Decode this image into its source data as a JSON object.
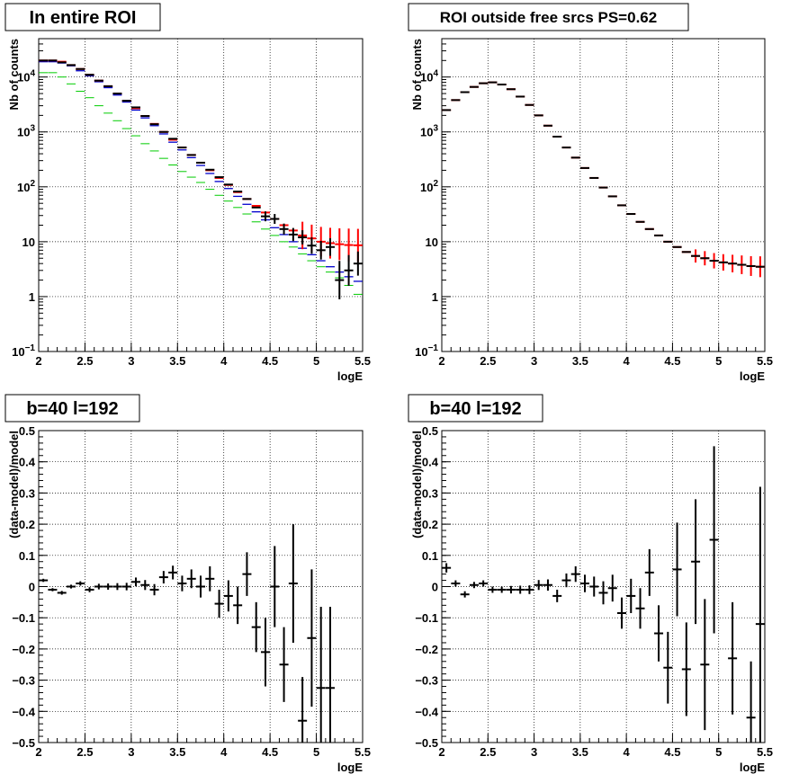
{
  "chart_data": [
    {
      "type": "scatter",
      "title": "In entire ROI",
      "xlabel": "logE",
      "ylabel": "Nb of counts",
      "log_y": true,
      "xlim": [
        2,
        5.5
      ],
      "ylim": [
        0.1,
        50000
      ],
      "x_ticks": [
        "2",
        "2.5",
        "3",
        "3.5",
        "4",
        "4.5",
        "5",
        "5.5"
      ],
      "y_ticks": [
        {
          "v": 0.1,
          "m": "10",
          "e": "−1"
        },
        {
          "v": 1,
          "m": "1",
          "e": ""
        },
        {
          "v": 10,
          "m": "10",
          "e": ""
        },
        {
          "v": 100,
          "m": "10",
          "e": "2"
        },
        {
          "v": 1000,
          "m": "10",
          "e": "3"
        },
        {
          "v": 10000,
          "m": "10",
          "e": "4"
        }
      ],
      "grid": true,
      "series": [
        {
          "color": "#00cc00",
          "lw": 1,
          "x": [
            2.05,
            2.15,
            2.25,
            2.35,
            2.45,
            2.55,
            2.65,
            2.75,
            2.85,
            2.95,
            3.05,
            3.15,
            3.25,
            3.35,
            3.45,
            3.55,
            3.65,
            3.75,
            3.85,
            3.95,
            4.05,
            4.15,
            4.25,
            4.35,
            4.45,
            4.55,
            4.65,
            4.75,
            4.85,
            4.95,
            5.05,
            5.15,
            5.25,
            5.35,
            5.45
          ],
          "y": [
            12000,
            12000,
            10000,
            7500,
            5500,
            4200,
            3000,
            2200,
            1600,
            1150,
            850,
            610,
            450,
            330,
            250,
            190,
            150,
            120,
            90,
            70,
            55,
            42,
            32,
            23,
            17,
            13,
            10,
            8,
            6,
            4.5,
            3.5,
            2.8,
            2.2,
            1.6,
            1.1
          ]
        },
        {
          "color": "#0000cc",
          "lw": 1.3,
          "x": [
            2.05,
            2.15,
            2.25,
            2.35,
            2.45,
            2.55,
            2.65,
            2.75,
            2.85,
            2.95,
            3.05,
            3.15,
            3.25,
            3.35,
            3.45,
            3.55,
            3.65,
            3.75,
            3.85,
            3.95,
            4.05,
            4.15,
            4.25,
            4.35,
            4.45,
            4.55,
            4.65,
            4.75,
            4.85,
            4.95,
            5.05,
            5.15,
            5.25,
            5.35,
            5.45
          ],
          "y": [
            19000,
            19000,
            18000,
            16000,
            13000,
            10500,
            8200,
            6400,
            4700,
            3500,
            2500,
            1800,
            1300,
            920,
            650,
            470,
            340,
            245,
            175,
            125,
            93,
            67,
            48,
            35,
            25,
            18,
            13.5,
            10,
            7.6,
            5.8,
            4.5,
            3.5,
            2.8,
            2.3,
            1.9
          ]
        },
        {
          "color": "#ff0000",
          "lw": 2,
          "x": [
            2.05,
            2.15,
            2.25,
            2.35,
            2.45,
            2.55,
            2.65,
            2.75,
            2.85,
            2.95,
            3.05,
            3.15,
            3.25,
            3.35,
            3.45,
            3.55,
            3.65,
            3.75,
            3.85,
            3.95,
            4.05,
            4.15,
            4.25,
            4.35,
            4.45,
            4.55,
            4.65,
            4.75,
            4.85,
            4.95,
            5.05,
            5.15,
            5.25,
            5.35,
            5.45
          ],
          "y": [
            20000,
            20000,
            19000,
            16500,
            14000,
            11000,
            8600,
            6800,
            5000,
            3700,
            2700,
            1950,
            1400,
            1000,
            720,
            520,
            380,
            275,
            200,
            145,
            108,
            80,
            60,
            45,
            34,
            26,
            20,
            16,
            13,
            11.5,
            10,
            9.4,
            9,
            8.7,
            8.6
          ],
          "err": [
            0,
            0,
            0,
            0,
            0,
            0,
            0,
            0,
            0,
            0,
            0,
            0,
            0,
            0,
            0,
            0,
            0,
            0,
            0,
            0,
            0,
            0,
            0,
            0,
            0,
            0,
            0,
            0,
            0.25,
            0.25,
            0.27,
            0.28,
            0.29,
            0.3,
            0.3
          ]
        },
        {
          "color": "#000000",
          "lw": 2,
          "x": [
            2.05,
            2.15,
            2.25,
            2.35,
            2.45,
            2.55,
            2.65,
            2.75,
            2.85,
            2.95,
            3.05,
            3.15,
            3.25,
            3.35,
            3.45,
            3.55,
            3.65,
            3.75,
            3.85,
            3.95,
            4.05,
            4.15,
            4.25,
            4.35,
            4.45,
            4.55,
            4.65,
            4.75,
            4.85,
            4.95,
            5.05,
            5.15,
            5.25,
            5.35,
            5.45
          ],
          "y": [
            20000,
            20000,
            18500,
            16500,
            14000,
            11000,
            8600,
            6800,
            5000,
            3700,
            2800,
            1950,
            1380,
            1000,
            750,
            520,
            380,
            275,
            205,
            150,
            110,
            82,
            60,
            42,
            29,
            26,
            17,
            13.5,
            12,
            8.5,
            7,
            8,
            2,
            3,
            4
          ],
          "err": [
            0,
            0,
            0,
            0,
            0,
            0,
            0,
            0,
            0,
            0,
            0,
            0,
            0,
            0,
            0,
            0,
            0,
            0,
            0,
            0,
            0,
            0,
            0,
            0,
            0.09,
            0.09,
            0.1,
            0.12,
            0.13,
            0.15,
            0.17,
            0.16,
            0.35,
            0.28,
            0.22
          ]
        }
      ]
    },
    {
      "type": "scatter",
      "title": "ROI outside free srcs PS=0.62",
      "xlabel": "logE",
      "ylabel": "Nb of counts",
      "log_y": true,
      "xlim": [
        2,
        5.5
      ],
      "ylim": [
        0.1,
        50000
      ],
      "x_ticks": [
        "2",
        "2.5",
        "3",
        "3.5",
        "4",
        "4.5",
        "5",
        "5.5"
      ],
      "y_ticks": [
        {
          "v": 0.1,
          "m": "10",
          "e": "−1"
        },
        {
          "v": 1,
          "m": "1",
          "e": ""
        },
        {
          "v": 10,
          "m": "10",
          "e": ""
        },
        {
          "v": 100,
          "m": "10",
          "e": "2"
        },
        {
          "v": 1000,
          "m": "10",
          "e": "3"
        },
        {
          "v": 10000,
          "m": "10",
          "e": "4"
        }
      ],
      "grid": true,
      "series": [
        {
          "color": "#ff0000",
          "lw": 2,
          "x": [
            2.05,
            2.15,
            2.25,
            2.35,
            2.45,
            2.55,
            2.65,
            2.75,
            2.85,
            2.95,
            3.05,
            3.15,
            3.25,
            3.35,
            3.45,
            3.55,
            3.65,
            3.75,
            3.85,
            3.95,
            4.05,
            4.15,
            4.25,
            4.35,
            4.45,
            4.55,
            4.65,
            4.75,
            4.85,
            4.95,
            5.05,
            5.15,
            5.25,
            5.35,
            5.45
          ],
          "y": [
            2500,
            3800,
            5300,
            6600,
            7700,
            8000,
            7300,
            6000,
            4400,
            3100,
            2000,
            1300,
            820,
            520,
            340,
            220,
            145,
            97,
            67,
            46,
            32,
            23,
            17,
            13,
            10,
            8,
            6.5,
            5.5,
            5,
            4.5,
            4.2,
            4,
            3.8,
            3.6,
            3.5
          ],
          "err": [
            0,
            0,
            0,
            0,
            0,
            0,
            0,
            0,
            0,
            0,
            0,
            0,
            0,
            0,
            0,
            0,
            0,
            0,
            0,
            0,
            0,
            0,
            0,
            0,
            0,
            0,
            0,
            0.12,
            0.13,
            0.14,
            0.15,
            0.16,
            0.17,
            0.18,
            0.19
          ]
        },
        {
          "color": "#000000",
          "lw": 2,
          "x": [
            2.05,
            2.15,
            2.25,
            2.35,
            2.45,
            2.55,
            2.65,
            2.75,
            2.85,
            2.95,
            3.05,
            3.15,
            3.25,
            3.35,
            3.45,
            3.55,
            3.65,
            3.75,
            3.85,
            3.95,
            4.05,
            4.15,
            4.25,
            4.35,
            4.45,
            4.55,
            4.65,
            4.75,
            4.85,
            4.95,
            5.05,
            5.15,
            5.25,
            5.35,
            5.45
          ],
          "y": [
            2500,
            3800,
            5300,
            6600,
            7700,
            8000,
            7300,
            6000,
            4400,
            3100,
            2000,
            1300,
            820,
            520,
            340,
            220,
            145,
            97,
            67,
            46,
            32,
            23,
            17,
            13,
            10,
            8,
            6.5,
            5.5,
            5,
            4.5,
            4.2,
            4,
            3.8,
            3.6,
            3.5
          ],
          "err": [
            0,
            0,
            0,
            0,
            0,
            0,
            0,
            0,
            0,
            0,
            0,
            0,
            0,
            0,
            0,
            0,
            0,
            0,
            0,
            0,
            0,
            0,
            0,
            0,
            0,
            0,
            0,
            0,
            0,
            0,
            0,
            0,
            0,
            0,
            0
          ]
        }
      ]
    },
    {
      "type": "scatter",
      "title": "b=40 l=192",
      "xlabel": "logE",
      "ylabel": "(data-model)/model",
      "log_y": false,
      "xlim": [
        2,
        5.5
      ],
      "ylim": [
        -0.5,
        0.5
      ],
      "x_ticks": [
        "2",
        "2.5",
        "3",
        "3.5",
        "4",
        "4.5",
        "5",
        "5.5"
      ],
      "y_ticks": [
        {
          "v": -0.5,
          "m": "−0.5"
        },
        {
          "v": -0.4,
          "m": "−0.4"
        },
        {
          "v": -0.3,
          "m": "−0.3"
        },
        {
          "v": -0.2,
          "m": "−0.2"
        },
        {
          "v": -0.1,
          "m": "−0.1"
        },
        {
          "v": 0,
          "m": "0"
        },
        {
          "v": 0.1,
          "m": "0.1"
        },
        {
          "v": 0.2,
          "m": "0.2"
        },
        {
          "v": 0.3,
          "m": "0.3"
        },
        {
          "v": 0.4,
          "m": "0.4"
        },
        {
          "v": 0.5,
          "m": "0.5"
        }
      ],
      "grid": true,
      "series": [
        {
          "color": "#000000",
          "lw": 2,
          "x": [
            2.05,
            2.15,
            2.25,
            2.35,
            2.45,
            2.55,
            2.65,
            2.75,
            2.85,
            2.95,
            3.05,
            3.15,
            3.25,
            3.35,
            3.45,
            3.55,
            3.65,
            3.75,
            3.85,
            3.95,
            4.05,
            4.15,
            4.25,
            4.35,
            4.45,
            4.55,
            4.65,
            4.75,
            4.85,
            4.95,
            5.05,
            5.15
          ],
          "y": [
            0.02,
            -0.01,
            -0.02,
            0.0,
            0.01,
            -0.01,
            0.0,
            0.0,
            0.0,
            0.0,
            0.015,
            0.005,
            -0.01,
            0.03,
            0.045,
            0.01,
            0.025,
            0.0,
            0.025,
            -0.055,
            -0.03,
            -0.06,
            0.04,
            -0.13,
            -0.21,
            0.0,
            -0.25,
            0.01,
            -0.43,
            -0.165,
            -0.325,
            -0.325
          ],
          "yerr": [
            0.005,
            0.005,
            0.006,
            0.006,
            0.007,
            0.008,
            0.009,
            0.01,
            0.011,
            0.012,
            0.014,
            0.016,
            0.018,
            0.02,
            0.022,
            0.025,
            0.03,
            0.035,
            0.04,
            0.045,
            0.05,
            0.06,
            0.07,
            0.08,
            0.11,
            0.13,
            0.12,
            0.19,
            0.14,
            0.22,
            0.26,
            0.26
          ]
        }
      ]
    },
    {
      "type": "scatter",
      "title": "b=40 l=192",
      "xlabel": "logE",
      "ylabel": "(data-model)/model",
      "log_y": false,
      "xlim": [
        2,
        5.5
      ],
      "ylim": [
        -0.5,
        0.5
      ],
      "x_ticks": [
        "2",
        "2.5",
        "3",
        "3.5",
        "4",
        "4.5",
        "5",
        "5.5"
      ],
      "y_ticks": [
        {
          "v": -0.5,
          "m": "−0.5"
        },
        {
          "v": -0.4,
          "m": "−0.4"
        },
        {
          "v": -0.3,
          "m": "−0.3"
        },
        {
          "v": -0.2,
          "m": "−0.2"
        },
        {
          "v": -0.1,
          "m": "−0.1"
        },
        {
          "v": 0,
          "m": "0"
        },
        {
          "v": 0.1,
          "m": "0.1"
        },
        {
          "v": 0.2,
          "m": "0.2"
        },
        {
          "v": 0.3,
          "m": "0.3"
        },
        {
          "v": 0.4,
          "m": "0.4"
        },
        {
          "v": 0.5,
          "m": "0.5"
        }
      ],
      "grid": true,
      "series": [
        {
          "color": "#000000",
          "lw": 2,
          "x": [
            2.05,
            2.15,
            2.25,
            2.35,
            2.45,
            2.55,
            2.65,
            2.75,
            2.85,
            2.95,
            3.05,
            3.15,
            3.25,
            3.35,
            3.45,
            3.55,
            3.65,
            3.75,
            3.85,
            3.95,
            4.05,
            4.15,
            4.25,
            4.35,
            4.45,
            4.55,
            4.65,
            4.75,
            4.85,
            4.95,
            5.15,
            5.35,
            5.45
          ],
          "y": [
            0.06,
            0.01,
            -0.025,
            0.005,
            0.01,
            -0.01,
            -0.01,
            -0.01,
            -0.01,
            -0.01,
            0.005,
            0.005,
            -0.03,
            0.02,
            0.04,
            0.01,
            0.0,
            -0.02,
            -0.005,
            -0.085,
            -0.03,
            -0.07,
            0.045,
            -0.15,
            -0.26,
            0.055,
            -0.265,
            0.08,
            -0.25,
            0.15,
            -0.23,
            -0.42,
            -0.12
          ],
          "yerr": [
            0.015,
            0.01,
            0.01,
            0.01,
            0.01,
            0.01,
            0.01,
            0.012,
            0.013,
            0.014,
            0.016,
            0.018,
            0.02,
            0.022,
            0.025,
            0.028,
            0.032,
            0.037,
            0.043,
            0.05,
            0.055,
            0.065,
            0.075,
            0.09,
            0.115,
            0.15,
            0.15,
            0.2,
            0.21,
            0.3,
            0.18,
            0.18,
            0.44
          ]
        }
      ]
    }
  ]
}
